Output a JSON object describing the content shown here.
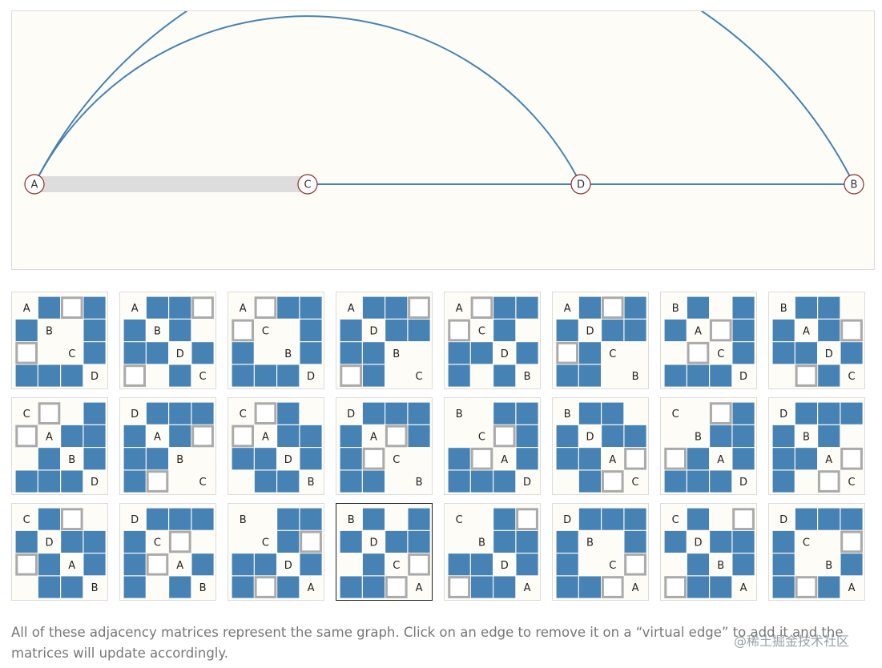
{
  "graph": {
    "nodes": [
      {
        "id": "A",
        "label": "A"
      },
      {
        "id": "C",
        "label": "C"
      },
      {
        "id": "D",
        "label": "D"
      },
      {
        "id": "B",
        "label": "B"
      }
    ],
    "edges": [
      {
        "source": "C",
        "target": "D",
        "kind": "edge"
      },
      {
        "source": "D",
        "target": "B",
        "kind": "edge"
      },
      {
        "source": "A",
        "target": "D",
        "kind": "edge"
      },
      {
        "source": "A",
        "target": "B",
        "kind": "edge"
      },
      {
        "source": "A",
        "target": "C",
        "kind": "virtual-edge"
      }
    ],
    "colors": {
      "edge": "#4682b4",
      "virtual_edge": "#dddddd",
      "node_stroke": "#8b2c2c",
      "node_fill": "#ffffff"
    }
  },
  "matrices": [
    {
      "order": [
        "A",
        "B",
        "C",
        "D"
      ]
    },
    {
      "order": [
        "A",
        "B",
        "D",
        "C"
      ]
    },
    {
      "order": [
        "A",
        "C",
        "B",
        "D"
      ]
    },
    {
      "order": [
        "A",
        "D",
        "B",
        "C"
      ]
    },
    {
      "order": [
        "A",
        "C",
        "D",
        "B"
      ]
    },
    {
      "order": [
        "A",
        "D",
        "C",
        "B"
      ]
    },
    {
      "order": [
        "B",
        "A",
        "C",
        "D"
      ]
    },
    {
      "order": [
        "B",
        "A",
        "D",
        "C"
      ]
    },
    {
      "order": [
        "C",
        "A",
        "B",
        "D"
      ]
    },
    {
      "order": [
        "D",
        "A",
        "B",
        "C"
      ]
    },
    {
      "order": [
        "C",
        "A",
        "D",
        "B"
      ]
    },
    {
      "order": [
        "D",
        "A",
        "C",
        "B"
      ]
    },
    {
      "order": [
        "B",
        "C",
        "A",
        "D"
      ]
    },
    {
      "order": [
        "B",
        "D",
        "A",
        "C"
      ]
    },
    {
      "order": [
        "C",
        "B",
        "A",
        "D"
      ]
    },
    {
      "order": [
        "D",
        "B",
        "A",
        "C"
      ]
    },
    {
      "order": [
        "C",
        "D",
        "A",
        "B"
      ]
    },
    {
      "order": [
        "D",
        "C",
        "A",
        "B"
      ]
    },
    {
      "order": [
        "B",
        "C",
        "D",
        "A"
      ]
    },
    {
      "order": [
        "B",
        "D",
        "C",
        "A"
      ],
      "selected": true
    },
    {
      "order": [
        "C",
        "B",
        "D",
        "A"
      ]
    },
    {
      "order": [
        "D",
        "B",
        "C",
        "A"
      ]
    },
    {
      "order": [
        "C",
        "D",
        "B",
        "A"
      ]
    },
    {
      "order": [
        "D",
        "C",
        "B",
        "A"
      ]
    }
  ],
  "matrix_colors": {
    "edge_fill": "#4682b4",
    "virtual_stroke": "#aaaaaa",
    "background": "#fdfcf6"
  },
  "caption": "All of these adjacency matrices represent the same graph. Click on an edge to remove it on a “virtual edge” to add it and the matrices will update accordingly.",
  "watermark": "@稀土掘金技术社区"
}
